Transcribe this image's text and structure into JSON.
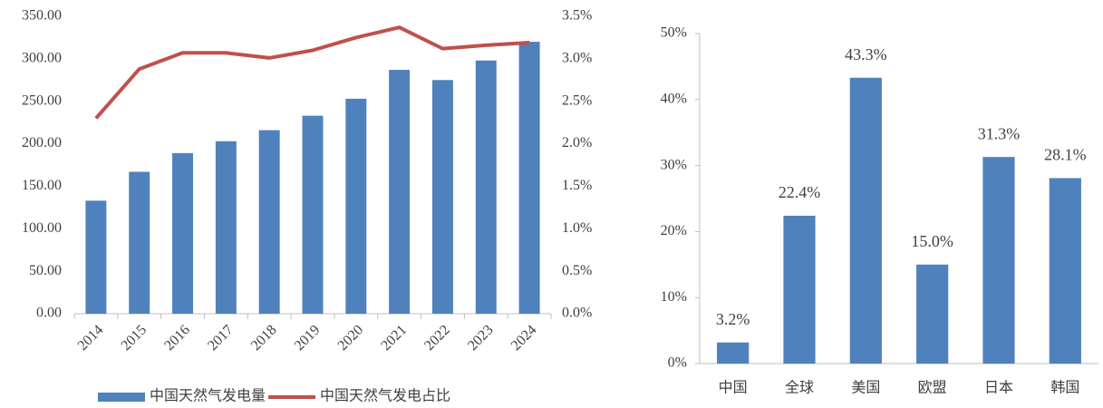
{
  "chart_data": [
    {
      "type": "bar",
      "categories": [
        "2014",
        "2015",
        "2016",
        "2017",
        "2018",
        "2019",
        "2020",
        "2021",
        "2022",
        "2023",
        "2024"
      ],
      "series": [
        {
          "name": "中国天然气发电量",
          "color": "#4f81bd",
          "values": [
            133,
            167,
            189,
            203,
            216,
            233,
            253,
            287,
            275,
            298,
            320
          ]
        },
        {
          "name": "中国天然气发电占比",
          "type": "line",
          "axis": "y2",
          "color": "#c0504d",
          "values": [
            2.3,
            2.88,
            3.07,
            3.07,
            3.01,
            3.1,
            3.25,
            3.37,
            3.12,
            3.16,
            3.19
          ]
        }
      ],
      "ylim": [
        0,
        350
      ],
      "yticks": [
        {
          "value": 0,
          "label": "0.00"
        },
        {
          "value": 50,
          "label": "50.00"
        },
        {
          "value": 100,
          "label": "100.00"
        },
        {
          "value": 150,
          "label": "150.00"
        },
        {
          "value": 200,
          "label": "200.00"
        },
        {
          "value": 250,
          "label": "250.00"
        },
        {
          "value": 300,
          "label": "300.00"
        },
        {
          "value": 350,
          "label": "350.00"
        }
      ],
      "y2lim": [
        0,
        3.5
      ],
      "y2ticks": [
        {
          "value": 0,
          "label": "0.0%"
        },
        {
          "value": 0.5,
          "label": "0.5%"
        },
        {
          "value": 1,
          "label": "1.0%"
        },
        {
          "value": 1.5,
          "label": "1.5%"
        },
        {
          "value": 2,
          "label": "2.0%"
        },
        {
          "value": 2.5,
          "label": "2.5%"
        },
        {
          "value": 3,
          "label": "3.0%"
        },
        {
          "value": 3.5,
          "label": "3.5%"
        }
      ],
      "legend": "bottom"
    },
    {
      "type": "bar",
      "categories": [
        "中国",
        "全球",
        "美国",
        "欧盟",
        "日本",
        "韩国"
      ],
      "series": [
        {
          "color": "#4f81bd",
          "values": [
            3.2,
            22.4,
            43.3,
            15.0,
            31.3,
            28.1
          ],
          "value_labels": [
            "3.2%",
            "22.4%",
            "43.3%",
            "15.0%",
            "31.3%",
            "28.1%"
          ]
        }
      ],
      "ylim": [
        0,
        50
      ],
      "yticks": [
        {
          "value": 0,
          "label": "0%"
        },
        {
          "value": 10,
          "label": "10%"
        },
        {
          "value": 20,
          "label": "20%"
        },
        {
          "value": 30,
          "label": "30%"
        },
        {
          "value": 40,
          "label": "40%"
        },
        {
          "value": 50,
          "label": "50%"
        }
      ]
    }
  ]
}
